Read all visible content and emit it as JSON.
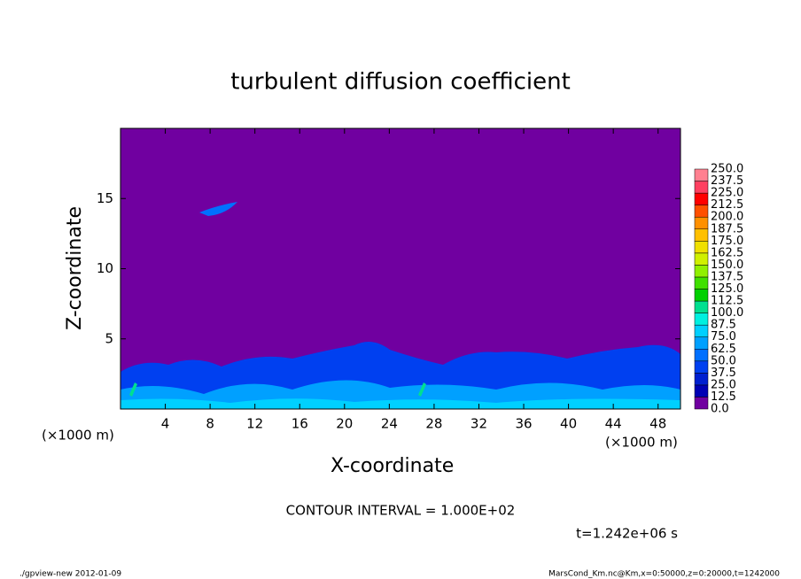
{
  "chart_data": {
    "type": "contour",
    "title": "turbulent diffusion coefficient",
    "xlabel": "X-coordinate",
    "ylabel": "Z-coordinate",
    "x_unit_labels": [
      "(×1000 m)",
      "(×1000 m)"
    ],
    "xlim": [
      0,
      50
    ],
    "xticks": [
      4,
      8,
      12,
      16,
      20,
      24,
      28,
      32,
      36,
      40,
      44,
      48
    ],
    "ylim": [
      0,
      20
    ],
    "yticks": [
      5,
      10,
      15
    ],
    "field_color": "#7000a0",
    "levels": [
      {
        "value": 0,
        "label": "0.0"
      },
      {
        "value": 12.5,
        "label": "12.5"
      },
      {
        "value": 25,
        "label": "25.0"
      },
      {
        "value": 37.5,
        "label": "37.5"
      },
      {
        "value": 50,
        "label": "50.0"
      },
      {
        "value": 62.5,
        "label": "62.5"
      },
      {
        "value": 75,
        "label": "75.0"
      },
      {
        "value": 87.5,
        "label": "87.5"
      },
      {
        "value": 100,
        "label": "100.0"
      },
      {
        "value": 112.5,
        "label": "112.5"
      },
      {
        "value": 125,
        "label": "125.0"
      },
      {
        "value": 137.5,
        "label": "137.5"
      },
      {
        "value": 150,
        "label": "150.0"
      },
      {
        "value": 162.5,
        "label": "162.5"
      },
      {
        "value": 175,
        "label": "175.0"
      },
      {
        "value": 187.5,
        "label": "187.5"
      },
      {
        "value": 200,
        "label": "200.0"
      },
      {
        "value": 212.5,
        "label": "212.5"
      },
      {
        "value": 225,
        "label": "225.0"
      },
      {
        "value": 237.5,
        "label": "237.5"
      },
      {
        "value": 250,
        "label": "250.0"
      }
    ],
    "level_colors": [
      "#7000a0",
      "#0000b4",
      "#0020d0",
      "#0040f0",
      "#0070ff",
      "#00a0ff",
      "#00d0ff",
      "#00f0e0",
      "#00e090",
      "#00d000",
      "#40e000",
      "#90f000",
      "#d0f000",
      "#f0e000",
      "#ffc000",
      "#ff9000",
      "#ff5000",
      "#ff0000",
      "#ff4060",
      "#ff8090"
    ],
    "contour_interval_text": "CONTOUR INTERVAL = 1.000E+02",
    "time_text": "t=1.242e+06 s",
    "footer_left": "./gpview-new   2012-01-09",
    "footer_right": "MarsCond_Km.nc@Km,x=0:50000,z=0:20000,t=1242000"
  }
}
